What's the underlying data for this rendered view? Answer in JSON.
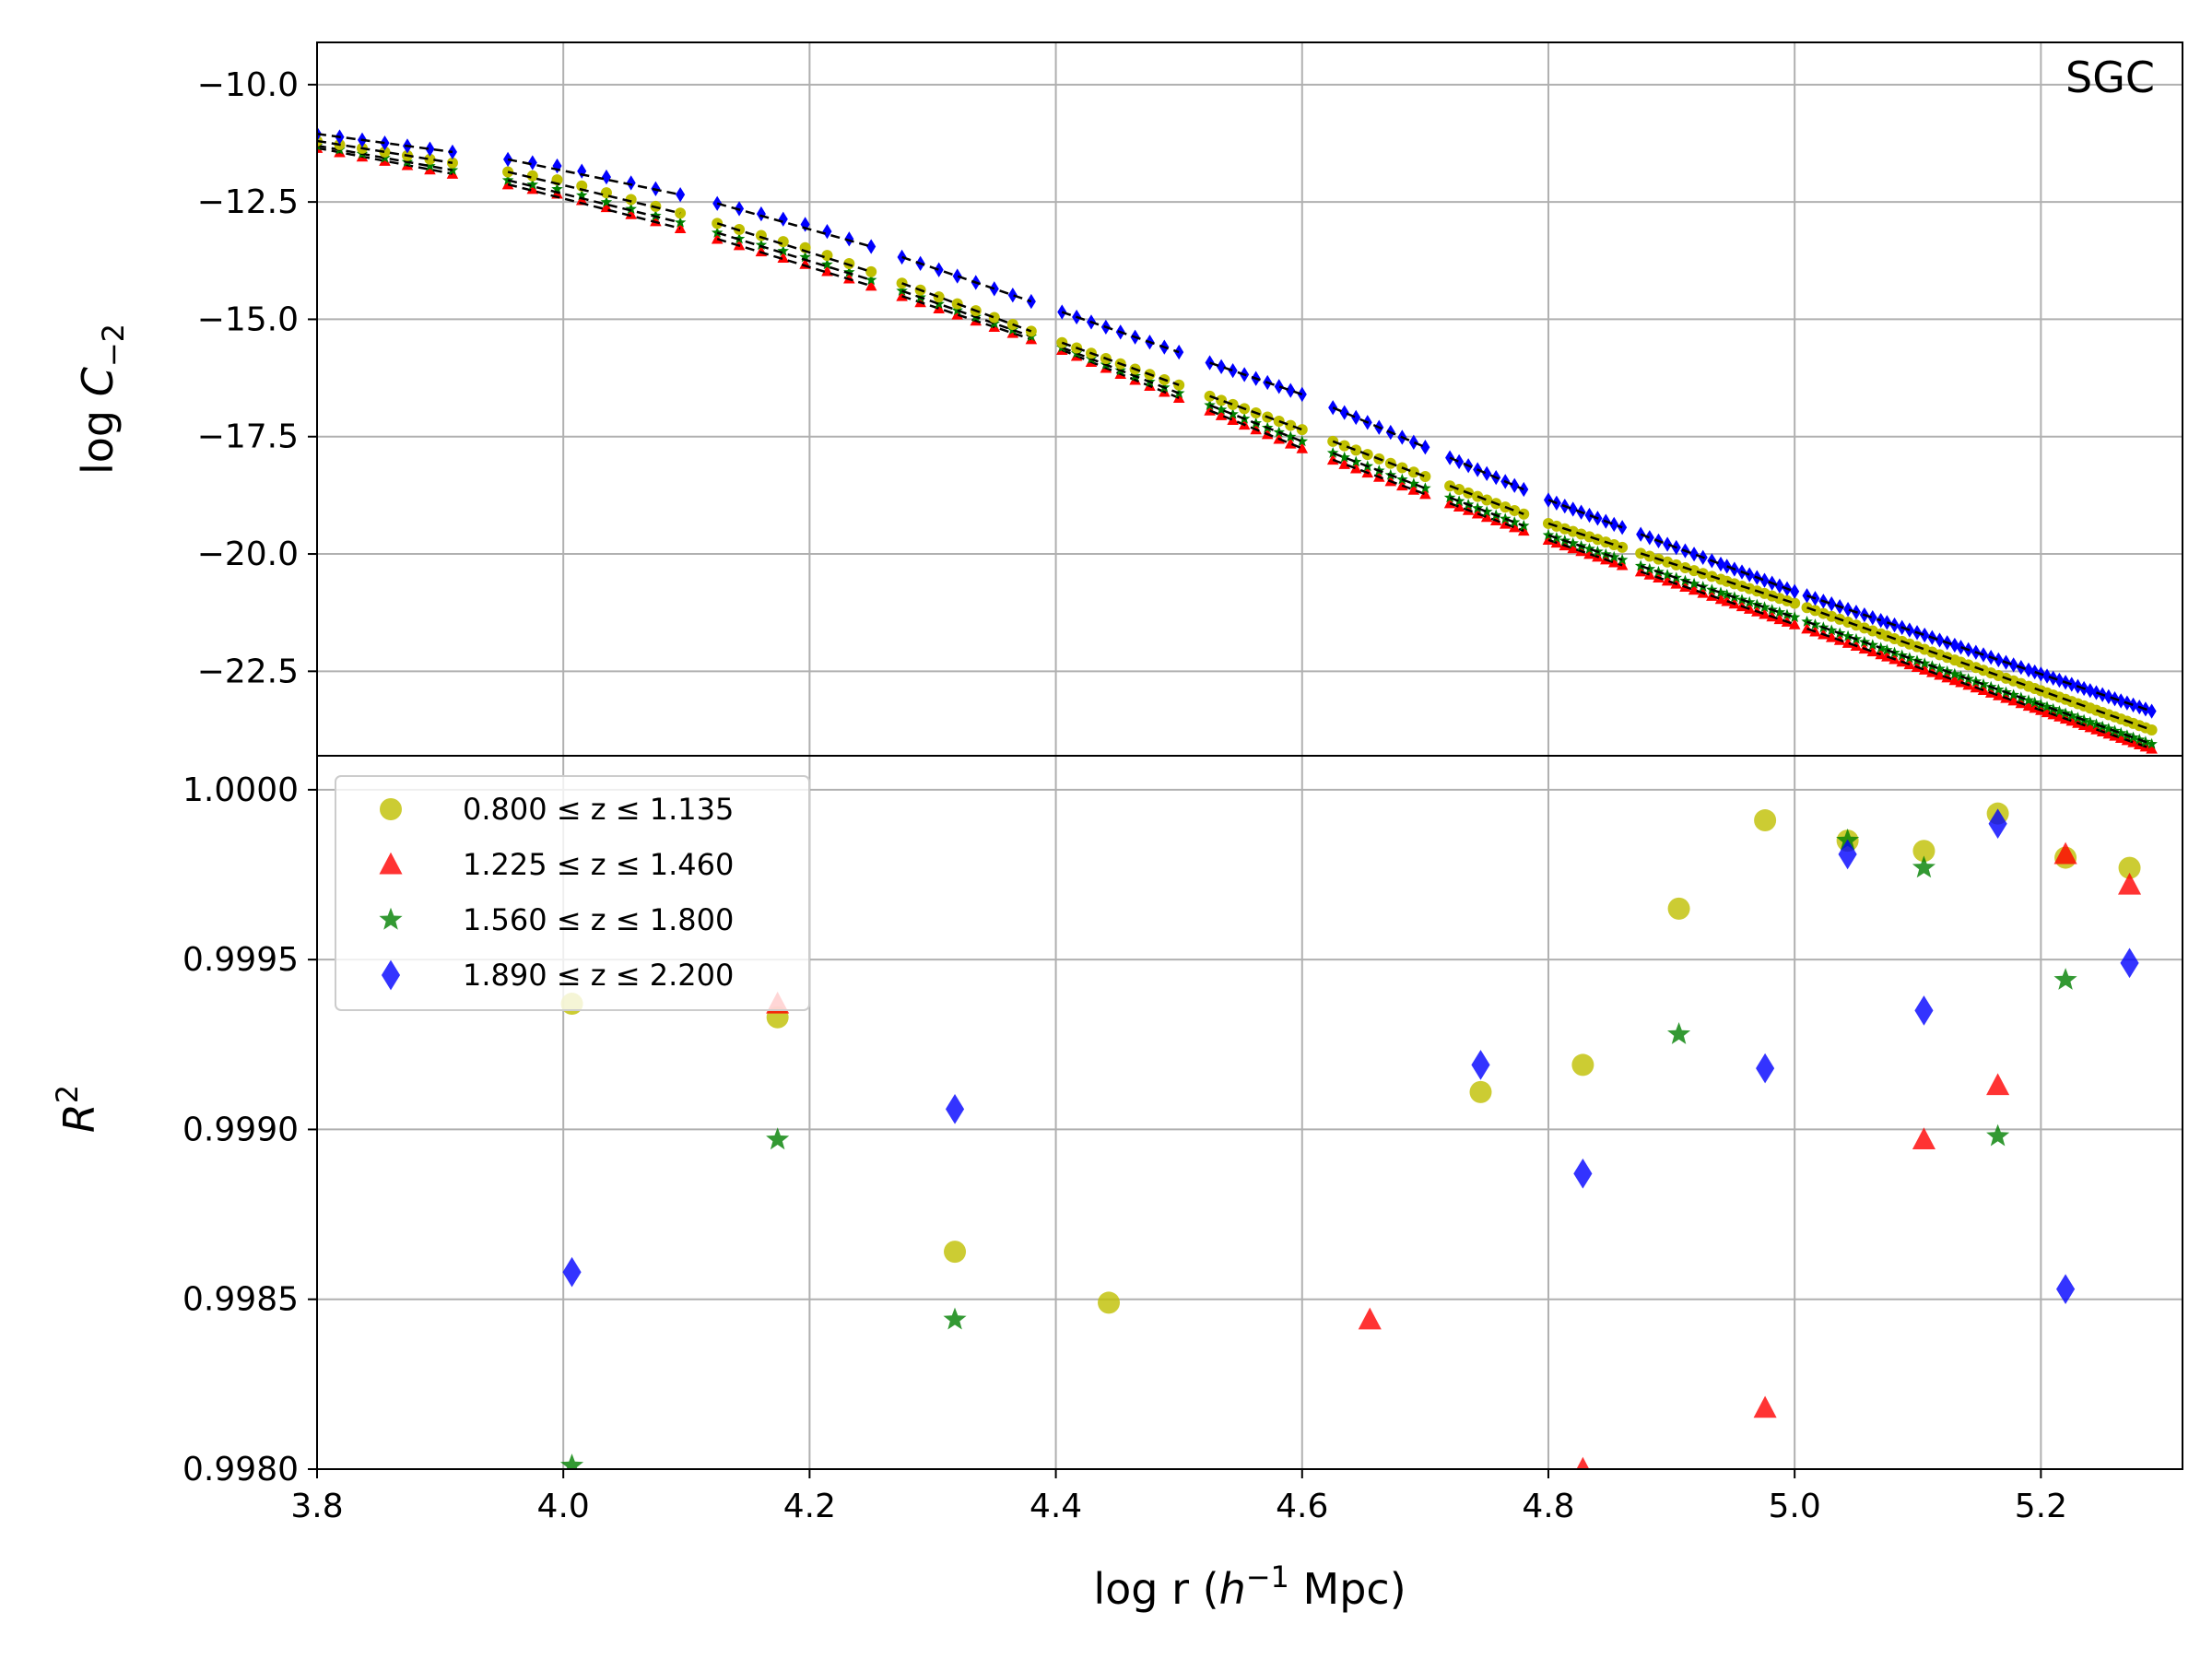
{
  "chart_data": [
    {
      "type": "scatter",
      "panel": "top",
      "annotation": "SGC",
      "ylabel": "log C_{-2}",
      "ylim": [
        -24.3,
        -9.1
      ],
      "yticks": [
        -10.0,
        -12.5,
        -15.0,
        -17.5,
        -20.0,
        -22.5
      ],
      "ytick_labels": [
        "−10.0",
        "−12.5",
        "−15.0",
        "−17.5",
        "−20.0",
        "−22.5"
      ],
      "grid": true,
      "x_clusters": [
        {
          "start": 3.8,
          "end": 3.91,
          "count": 7
        },
        {
          "start": 3.955,
          "end": 4.095,
          "count": 8
        },
        {
          "start": 4.125,
          "end": 4.25,
          "count": 8
        },
        {
          "start": 4.275,
          "end": 4.38,
          "count": 8
        },
        {
          "start": 4.405,
          "end": 4.5,
          "count": 9
        },
        {
          "start": 4.525,
          "end": 4.6,
          "count": 9
        },
        {
          "start": 4.625,
          "end": 4.7,
          "count": 9
        },
        {
          "start": 4.72,
          "end": 4.78,
          "count": 9
        },
        {
          "start": 4.8,
          "end": 4.86,
          "count": 10
        },
        {
          "start": 4.875,
          "end": 4.94,
          "count": 10
        },
        {
          "start": 4.945,
          "end": 5.0,
          "count": 10
        },
        {
          "start": 5.01,
          "end": 5.07,
          "count": 10
        },
        {
          "start": 5.075,
          "end": 5.13,
          "count": 10
        },
        {
          "start": 5.135,
          "end": 5.19,
          "count": 10
        },
        {
          "start": 5.195,
          "end": 5.24,
          "count": 10
        },
        {
          "start": 5.245,
          "end": 5.29,
          "count": 10
        }
      ],
      "series": [
        {
          "name": "0.800 ≤ z ≤ 1.135",
          "marker": "circle",
          "color": "#bfbf00",
          "curve": [
            [
              3.8,
              -11.2
            ],
            [
              4.0,
              -12.05
            ],
            [
              4.2,
              -13.5
            ],
            [
              4.4,
              -15.45
            ],
            [
              4.6,
              -17.35
            ],
            [
              4.8,
              -19.35
            ],
            [
              5.0,
              -21.05
            ],
            [
              5.29,
              -23.75
            ]
          ]
        },
        {
          "name": "1.225 ≤ z ≤ 1.460",
          "marker": "triangle",
          "color": "#ff0000",
          "curve": [
            [
              3.8,
              -11.35
            ],
            [
              4.0,
              -12.35
            ],
            [
              4.2,
              -13.85
            ],
            [
              4.4,
              -15.6
            ],
            [
              4.6,
              -17.75
            ],
            [
              4.8,
              -19.7
            ],
            [
              5.0,
              -21.5
            ],
            [
              5.29,
              -24.15
            ]
          ]
        },
        {
          "name": "1.560 ≤ z ≤ 1.800",
          "marker": "star",
          "color": "#008000",
          "curve": [
            [
              3.8,
              -11.3
            ],
            [
              4.0,
              -12.25
            ],
            [
              4.2,
              -13.7
            ],
            [
              4.4,
              -15.55
            ],
            [
              4.6,
              -17.6
            ],
            [
              4.8,
              -19.6
            ],
            [
              5.0,
              -21.35
            ],
            [
              5.29,
              -24.05
            ]
          ]
        },
        {
          "name": "1.890 ≤ z ≤ 2.200",
          "marker": "diamond",
          "color": "#0000ff",
          "curve": [
            [
              3.8,
              -11.05
            ],
            [
              4.0,
              -11.75
            ],
            [
              4.2,
              -13.0
            ],
            [
              4.4,
              -14.8
            ],
            [
              4.6,
              -16.6
            ],
            [
              4.8,
              -18.85
            ],
            [
              5.0,
              -20.8
            ],
            [
              5.29,
              -23.35
            ]
          ]
        }
      ]
    },
    {
      "type": "scatter",
      "panel": "bottom",
      "xlabel": "log r (h^{-1} Mpc)",
      "ylabel": "R^2",
      "xlim": [
        3.8,
        5.315
      ],
      "ylim": [
        0.998,
        1.0001
      ],
      "xticks": [
        3.8,
        4.0,
        4.2,
        4.4,
        4.6,
        4.8,
        5.0,
        5.2
      ],
      "xtick_labels": [
        "3.8",
        "4.0",
        "4.2",
        "4.4",
        "4.6",
        "4.8",
        "5.0",
        "5.2"
      ],
      "yticks": [
        0.998,
        0.9985,
        0.999,
        0.9995,
        1.0
      ],
      "ytick_labels": [
        "0.9980",
        "0.9985",
        "0.9990",
        "0.9995",
        "1.0000"
      ],
      "grid": true,
      "legend_position": "upper-left",
      "series": [
        {
          "name": "0.800 ≤ z ≤ 1.135",
          "marker": "circle",
          "color": "#bfbf00",
          "x": [
            4.007,
            4.174,
            4.318,
            4.443,
            4.745,
            4.828,
            4.906,
            4.976,
            5.043,
            5.105,
            5.165,
            5.22,
            5.272
          ],
          "y": [
            0.99937,
            0.99933,
            0.99864,
            0.99849,
            0.99911,
            0.99919,
            0.99965,
            0.99991,
            0.99985,
            0.99982,
            0.99993,
            0.9998,
            0.99977
          ]
        },
        {
          "name": "1.225 ≤ z ≤ 1.460",
          "marker": "triangle",
          "color": "#ff0000",
          "x": [
            4.174,
            4.655,
            4.828,
            4.976,
            5.105,
            5.165,
            5.22,
            5.272
          ],
          "y": [
            0.99937,
            0.99844,
            0.998,
            0.99818,
            0.99897,
            0.99913,
            0.99981,
            0.99972
          ]
        },
        {
          "name": "1.560 ≤ z ≤ 1.800",
          "marker": "star",
          "color": "#008000",
          "x": [
            4.007,
            4.174,
            4.318,
            4.906,
            5.043,
            5.105,
            5.165,
            5.22
          ],
          "y": [
            0.99801,
            0.99897,
            0.99844,
            0.99928,
            0.99985,
            0.99977,
            0.99898,
            0.99944
          ]
        },
        {
          "name": "1.890 ≤ z ≤ 2.200",
          "marker": "diamond",
          "color": "#0000ff",
          "x": [
            4.007,
            4.318,
            4.745,
            4.828,
            4.976,
            5.043,
            5.105,
            5.165,
            5.22,
            5.272
          ],
          "y": [
            0.99858,
            0.99906,
            0.99919,
            0.99887,
            0.99918,
            0.99981,
            0.99935,
            0.9999,
            0.99853,
            0.99949
          ]
        }
      ]
    }
  ]
}
